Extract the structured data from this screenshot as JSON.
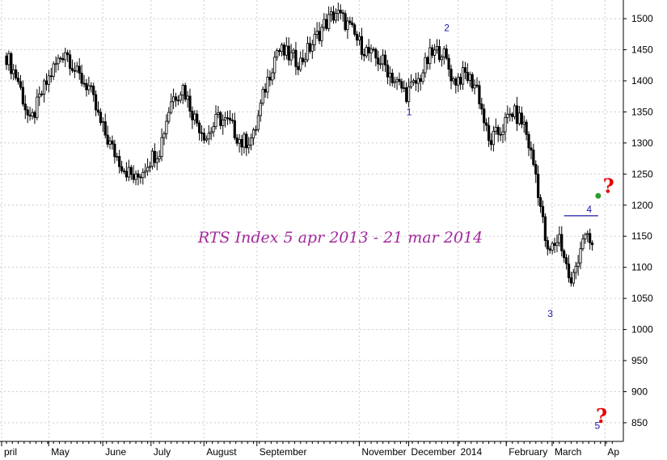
{
  "chart_data": {
    "type": "candlestick",
    "title": "RTS Index 5 apr 2013 - 21 mar 2014",
    "xlabel": "",
    "ylabel": "",
    "ylim": [
      820,
      1530
    ],
    "y_ticks": [
      850,
      900,
      950,
      1000,
      1050,
      1100,
      1150,
      1200,
      1250,
      1300,
      1350,
      1400,
      1450,
      1500
    ],
    "grid": true,
    "month_labels": [
      {
        "label": "pril",
        "week": 0
      },
      {
        "label": "May",
        "week": 4
      },
      {
        "label": "June",
        "week": 8.6
      },
      {
        "label": "July",
        "week": 12.7
      },
      {
        "label": "August",
        "week": 17.2
      },
      {
        "label": "September",
        "week": 21.7
      },
      {
        "label": "November",
        "week": 30.4
      },
      {
        "label": "December",
        "week": 34.6
      },
      {
        "label": "2014",
        "week": 38.8
      },
      {
        "label": "February",
        "week": 42.9
      },
      {
        "label": "March",
        "week": 46.8
      },
      {
        "label": "Ap",
        "week": 51.3
      }
    ],
    "weekly_closes": [
      1440,
      1400,
      1330,
      1380,
      1420,
      1450,
      1410,
      1390,
      1330,
      1290,
      1260,
      1240,
      1270,
      1290,
      1370,
      1390,
      1340,
      1310,
      1340,
      1330,
      1300,
      1310,
      1390,
      1450,
      1440,
      1430,
      1460,
      1490,
      1510,
      1490,
      1460,
      1440,
      1430,
      1400,
      1380,
      1400,
      1440,
      1450,
      1400,
      1410,
      1390,
      1300,
      1320,
      1350,
      1330,
      1250,
      1120,
      1150,
      1070,
      1150,
      1130
    ],
    "annotations": [
      {
        "label": "1",
        "week": 34.0,
        "value": 1345
      },
      {
        "label": "2",
        "week": 37.2,
        "value": 1480
      },
      {
        "label": "3",
        "week": 46.0,
        "value": 1020
      },
      {
        "label": "4",
        "week": 49.3,
        "value": 1188
      },
      {
        "label": "5",
        "week": 50.0,
        "value": 840
      }
    ],
    "resistance_line": {
      "value": 1183,
      "from_week": 47.4,
      "to_week": 50.3
    },
    "question_marks": [
      {
        "label": "?",
        "week": 50.7,
        "value": 1220
      },
      {
        "label": "?",
        "week": 50.1,
        "value": 850
      }
    ],
    "marker_point": {
      "week": 50.3,
      "value": 1215
    }
  },
  "colors": {
    "candle": "#000000",
    "grid": "#cccccc",
    "annotation": "#1a1aa6",
    "title": "#a2299a",
    "question": "#e60000",
    "marker": "#2a9d2a"
  }
}
